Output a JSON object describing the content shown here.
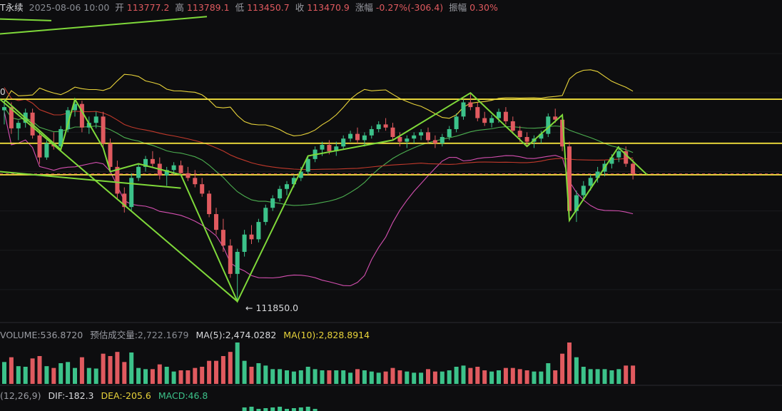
{
  "header": {
    "symbol": "T永续",
    "datetime": "2025-08-06 10:00",
    "open_label": "开",
    "open": "113777.2",
    "high_label": "高",
    "high": "113789.1",
    "low_label": "低",
    "low": "113450.7",
    "close_label": "收",
    "close": "113470.9",
    "change_label": "涨幅",
    "change": "-0.27%(-306.4)",
    "amp_label": "振幅",
    "amplitude": "0.30%"
  },
  "price_labels": {
    "low_annotation": "← 111850.0",
    "left_cut_label": "0"
  },
  "volume_row": {
    "volume": "VOLUME:536.8720",
    "est_label": "预估成交量:",
    "est": "2,722.1679",
    "ma5": "MA(5):2,474.0282",
    "ma10": "MA(10):2,828.8914"
  },
  "macd_row": {
    "params": "(12,26,9)",
    "dif": "DIF:-182.3",
    "dea": "DEA:-205.6",
    "macd": "MACD:46.8"
  },
  "colors": {
    "up": "#3cc28a",
    "down": "#e05a5f",
    "ma_yellow": "#e8d33a",
    "ma_red": "#c0392b",
    "ma_green": "#4caf50",
    "boll_pink": "#d44fb0",
    "trend_green": "#7fd93a",
    "level_yellow": "#f0de3c"
  },
  "chart_data": {
    "type": "candlestick",
    "price_range": [
      111600,
      115500
    ],
    "horizontal_levels": [
      114420,
      113860,
      113460
    ],
    "current_price_line": 113470.9,
    "lowest_marked": 111850.0,
    "candles": [
      [
        114280,
        114420,
        114100,
        114320
      ],
      [
        114320,
        114380,
        113980,
        114050
      ],
      [
        114050,
        114150,
        113900,
        114120
      ],
      [
        114120,
        114300,
        114060,
        114250
      ],
      [
        114250,
        114300,
        113920,
        113960
      ],
      [
        113960,
        114020,
        113600,
        113680
      ],
      [
        113680,
        113900,
        113650,
        113860
      ],
      [
        113860,
        114000,
        113780,
        113820
      ],
      [
        113820,
        114080,
        113780,
        114040
      ],
      [
        114040,
        114320,
        114000,
        114280
      ],
      [
        114280,
        114420,
        114200,
        114360
      ],
      [
        114360,
        114400,
        114000,
        114060
      ],
      [
        114060,
        114200,
        113980,
        114120
      ],
      [
        114120,
        114260,
        114050,
        114200
      ],
      [
        114200,
        114260,
        113800,
        113860
      ],
      [
        113860,
        113920,
        113500,
        113560
      ],
      [
        113560,
        113640,
        113150,
        113220
      ],
      [
        113220,
        113300,
        112980,
        113050
      ],
      [
        113050,
        113480,
        113000,
        113420
      ],
      [
        113420,
        113600,
        113380,
        113560
      ],
      [
        113560,
        113700,
        113500,
        113660
      ],
      [
        113660,
        113760,
        113560,
        113600
      ],
      [
        113600,
        113680,
        113400,
        113450
      ],
      [
        113450,
        113560,
        113320,
        113520
      ],
      [
        113520,
        113620,
        113460,
        113580
      ],
      [
        113580,
        113640,
        113460,
        113480
      ],
      [
        113480,
        113560,
        113380,
        113420
      ],
      [
        113420,
        113520,
        113300,
        113340
      ],
      [
        113340,
        113420,
        113180,
        113220
      ],
      [
        113220,
        113260,
        112920,
        112960
      ],
      [
        112960,
        113040,
        112700,
        112760
      ],
      [
        112760,
        112900,
        112480,
        112560
      ],
      [
        112560,
        112640,
        112150,
        112200
      ],
      [
        112200,
        112520,
        111850,
        112480
      ],
      [
        112480,
        112760,
        112420,
        112700
      ],
      [
        112700,
        112820,
        112580,
        112640
      ],
      [
        112640,
        112900,
        112600,
        112860
      ],
      [
        112860,
        113080,
        112820,
        113040
      ],
      [
        113040,
        113200,
        113000,
        113160
      ],
      [
        113160,
        113320,
        113120,
        113280
      ],
      [
        113280,
        113380,
        113200,
        113340
      ],
      [
        113340,
        113460,
        113300,
        113420
      ],
      [
        113420,
        113560,
        113380,
        113500
      ],
      [
        113500,
        113700,
        113460,
        113660
      ],
      [
        113660,
        113820,
        113620,
        113780
      ],
      [
        113780,
        113880,
        113700,
        113840
      ],
      [
        113840,
        113900,
        113720,
        113760
      ],
      [
        113760,
        113880,
        113700,
        113820
      ],
      [
        113820,
        113960,
        113780,
        113920
      ],
      [
        113920,
        114020,
        113880,
        113980
      ],
      [
        113980,
        114060,
        113860,
        113900
      ],
      [
        113900,
        114000,
        113820,
        113960
      ],
      [
        113960,
        114080,
        113920,
        114040
      ],
      [
        114040,
        114140,
        114000,
        114100
      ],
      [
        114100,
        114180,
        114020,
        114060
      ],
      [
        114060,
        114120,
        113900,
        113940
      ],
      [
        113940,
        114000,
        113820,
        113880
      ],
      [
        113880,
        113960,
        113800,
        113920
      ],
      [
        113920,
        114000,
        113860,
        113960
      ],
      [
        113960,
        114040,
        113900,
        114000
      ],
      [
        114000,
        114060,
        113860,
        113900
      ],
      [
        113900,
        113960,
        113800,
        113860
      ],
      [
        113860,
        113980,
        113820,
        113940
      ],
      [
        113940,
        114080,
        113900,
        114040
      ],
      [
        114040,
        114240,
        114000,
        114200
      ],
      [
        114200,
        114420,
        114160,
        114380
      ],
      [
        114380,
        114500,
        114280,
        114320
      ],
      [
        114320,
        114380,
        114140,
        114180
      ],
      [
        114180,
        114260,
        114080,
        114120
      ],
      [
        114120,
        114220,
        114060,
        114180
      ],
      [
        114180,
        114300,
        114120,
        114260
      ],
      [
        114260,
        114320,
        114100,
        114140
      ],
      [
        114140,
        114200,
        113980,
        114020
      ],
      [
        114020,
        114080,
        113880,
        113940
      ],
      [
        113940,
        114000,
        113820,
        113880
      ],
      [
        113880,
        113960,
        113800,
        113920
      ],
      [
        113920,
        114020,
        113860,
        113980
      ],
      [
        113980,
        114240,
        113940,
        114200
      ],
      [
        114200,
        114300,
        114120,
        114160
      ],
      [
        114160,
        114220,
        113760,
        113820
      ],
      [
        113820,
        113880,
        112880,
        113000
      ],
      [
        113000,
        113260,
        112860,
        113200
      ],
      [
        113200,
        113380,
        113140,
        113320
      ],
      [
        113320,
        113460,
        113260,
        113420
      ],
      [
        113420,
        113560,
        113360,
        113500
      ],
      [
        113500,
        113640,
        113440,
        113600
      ],
      [
        113600,
        113720,
        113540,
        113680
      ],
      [
        113680,
        113820,
        113620,
        113760
      ],
      [
        113760,
        113820,
        113560,
        113600
      ],
      [
        113600,
        113660,
        113400,
        113470
      ]
    ]
  }
}
